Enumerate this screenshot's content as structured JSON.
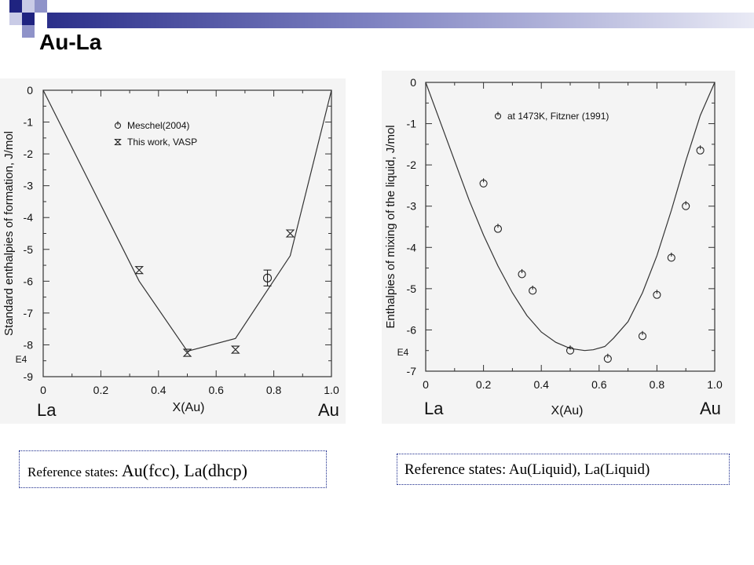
{
  "slide": {
    "title": "Au-La",
    "colors": {
      "accent_dark": "#1f2380",
      "accent_mid": "#8f93c9",
      "accent_light": "#c9cbe6",
      "box_border": "#1a2a8c"
    }
  },
  "reference_left": {
    "prefix": "Reference states: ",
    "value": "Au(fcc),  La(dhcp)"
  },
  "reference_right": {
    "text": "Reference states: Au(Liquid),  La(Liquid)"
  },
  "chart_data": [
    {
      "type": "scatter",
      "ylabel": "Standard enthalpies of formation, J/mol",
      "xlabel": "X(Au)",
      "exponent_label": "E4",
      "left_element": "La",
      "right_element": "Au",
      "xlim": [
        0,
        1
      ],
      "ylim": [
        -9,
        0
      ],
      "xticks": [
        "0",
        "0.2",
        "0.4",
        "0.6",
        "0.8",
        "1.0"
      ],
      "yticks": [
        "0",
        "-1",
        "-2",
        "-3",
        "-4",
        "-5",
        "-6",
        "-7",
        "-8",
        "-9"
      ],
      "legend_position": "top-right",
      "grid": false,
      "series": [
        {
          "kind": "line",
          "x": [
            0,
            0.333,
            0.5,
            0.667,
            0.857,
            1.0
          ],
          "y": [
            0,
            -6.0,
            -8.2,
            -7.8,
            -5.2,
            0
          ]
        },
        {
          "name": "Meschel(2004)",
          "kind": "circle-errorbar",
          "x": [
            0.778
          ],
          "y": [
            -5.9
          ],
          "err": [
            0.25
          ]
        },
        {
          "name": "This work, VASP",
          "kind": "hourglass",
          "x": [
            0.333,
            0.5,
            0.667,
            0.857
          ],
          "y": [
            -5.65,
            -8.25,
            -8.15,
            -4.5
          ]
        }
      ]
    },
    {
      "type": "scatter",
      "ylabel": "Enthalpies of mixing of  the liquid, J/mol",
      "xlabel": "X(Au)",
      "exponent_label": "E4",
      "left_element": "La",
      "right_element": "Au",
      "xlim": [
        0,
        1
      ],
      "ylim": [
        -7,
        0
      ],
      "xticks": [
        "0",
        "0.2",
        "0.4",
        "0.6",
        "0.8",
        "1.0"
      ],
      "yticks": [
        "0",
        "-1",
        "-2",
        "-3",
        "-4",
        "-5",
        "-6",
        "-7"
      ],
      "legend_position": "top-right",
      "grid": false,
      "series": [
        {
          "kind": "line",
          "x": [
            0,
            0.05,
            0.1,
            0.15,
            0.2,
            0.25,
            0.3,
            0.35,
            0.4,
            0.45,
            0.5,
            0.55,
            0.58,
            0.62,
            0.65,
            0.7,
            0.75,
            0.8,
            0.85,
            0.9,
            0.95,
            1.0
          ],
          "y": [
            0,
            -0.95,
            -1.9,
            -2.85,
            -3.7,
            -4.45,
            -5.1,
            -5.65,
            -6.05,
            -6.3,
            -6.45,
            -6.5,
            -6.48,
            -6.4,
            -6.2,
            -5.8,
            -5.1,
            -4.2,
            -3.1,
            -1.9,
            -0.8,
            0
          ]
        },
        {
          "name": "at 1473K, Fitzner (1991)",
          "kind": "circle",
          "x": [
            0.2,
            0.25,
            0.333,
            0.37,
            0.5,
            0.63,
            0.75,
            0.8,
            0.85,
            0.9,
            0.95
          ],
          "y": [
            -2.45,
            -3.55,
            -4.65,
            -5.05,
            -6.5,
            -6.7,
            -6.15,
            -5.15,
            -4.25,
            -3.0,
            -1.65
          ]
        }
      ]
    }
  ]
}
